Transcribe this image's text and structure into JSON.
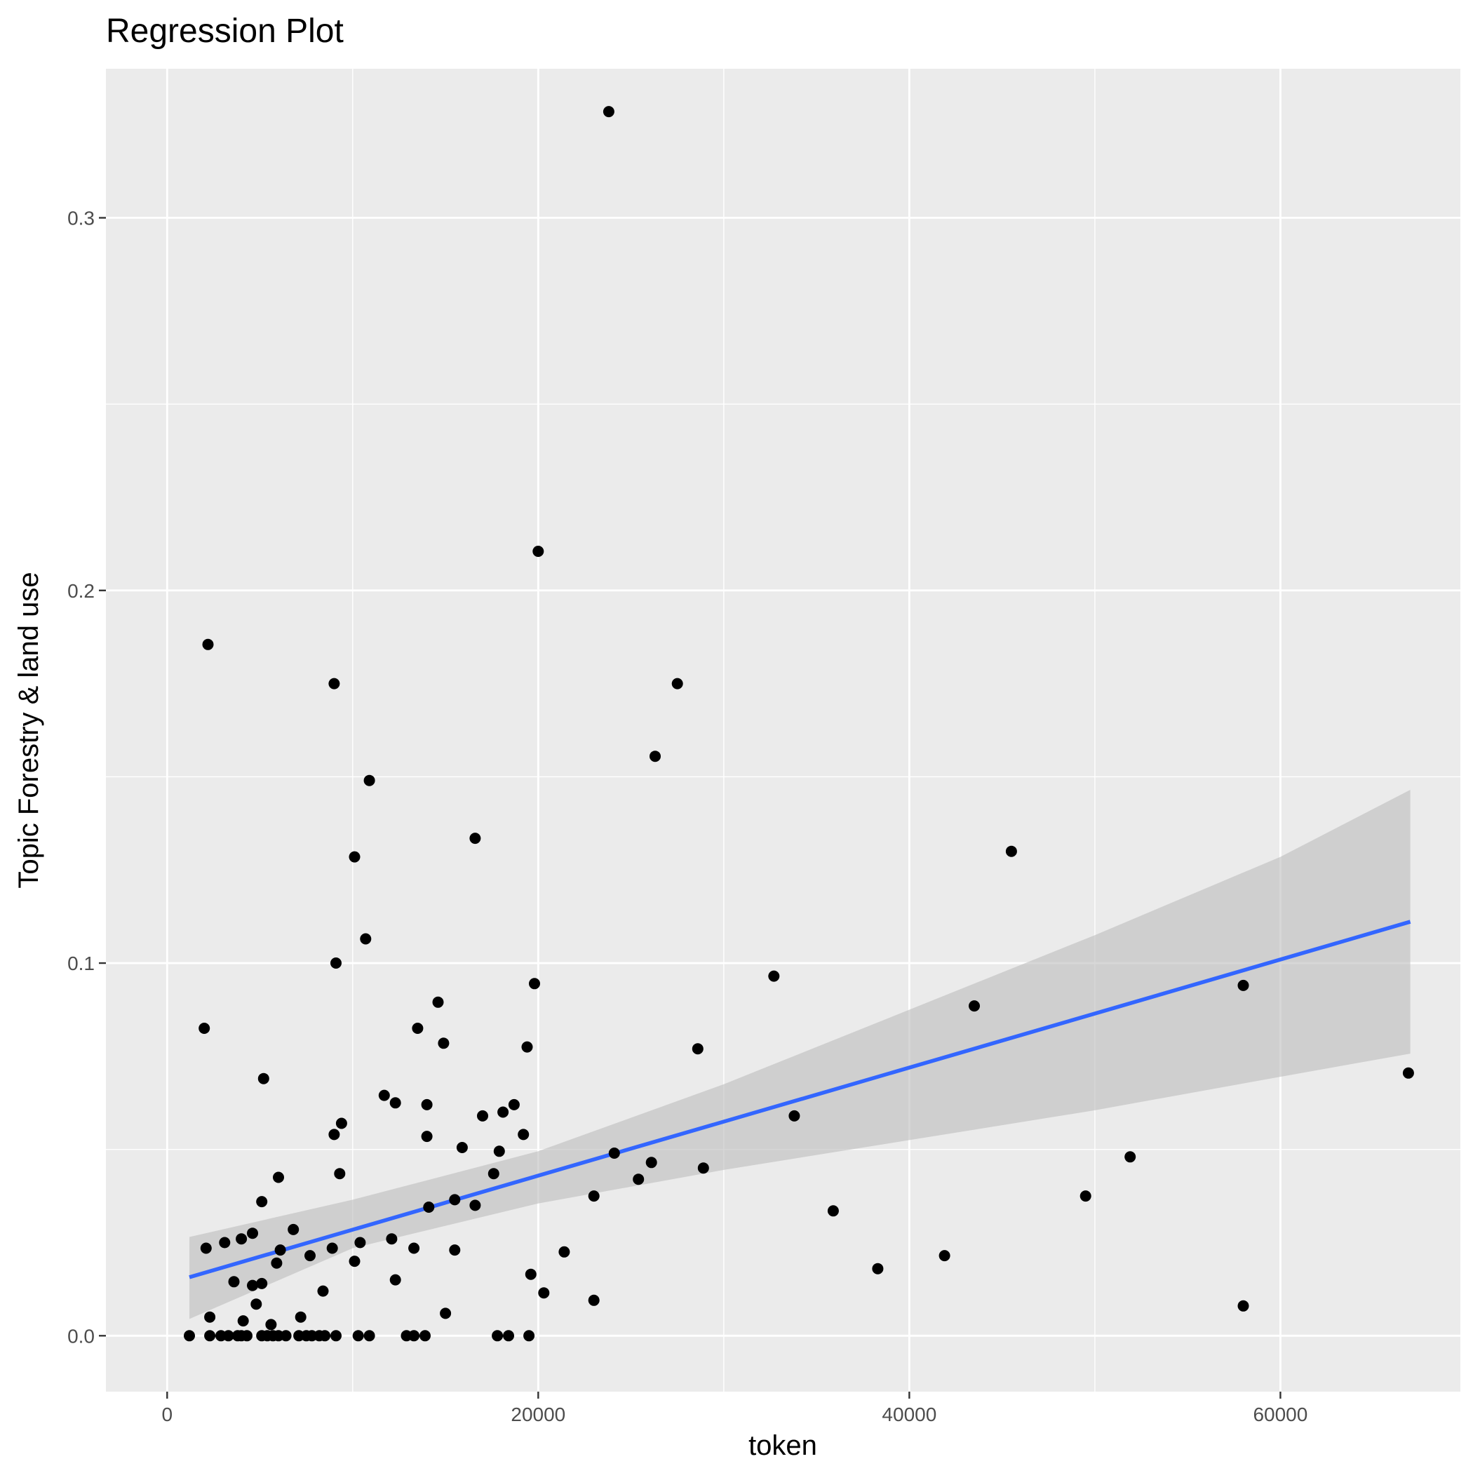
{
  "chart_data": {
    "type": "scatter",
    "title": "Regression Plot",
    "xlabel": "token",
    "ylabel": "Topic Forestry & land use",
    "xlim": [
      -3300,
      69700
    ],
    "ylim": [
      -0.015,
      0.34
    ],
    "x_ticks": [
      0,
      20000,
      40000,
      60000
    ],
    "x_tick_labels": [
      "0",
      "20000",
      "40000",
      "60000"
    ],
    "y_ticks": [
      0.0,
      0.1,
      0.2,
      0.3
    ],
    "y_tick_labels": [
      "0.0",
      "0.1",
      "0.2",
      "0.3"
    ],
    "grid": true,
    "colors": {
      "panel_background": "#ebebeb",
      "grid_line": "#ffffff",
      "points": "#000000",
      "regression_line": "#3366ff",
      "confidence_band": "#bdbdbd",
      "tick_label": "#4d4d4d",
      "tick_mark": "#333333"
    },
    "regression": {
      "x": [
        1200,
        67000
      ],
      "y": [
        0.0157,
        0.1111
      ],
      "band": {
        "x": [
          1200,
          10000,
          20000,
          30000,
          40000,
          50000,
          60000,
          67000
        ],
        "lower": [
          0.0045,
          0.0235,
          0.0355,
          0.0445,
          0.0525,
          0.0605,
          0.0695,
          0.0757
        ],
        "upper": [
          0.0265,
          0.0365,
          0.0495,
          0.0675,
          0.0875,
          0.1075,
          0.1285,
          0.1465
        ]
      }
    },
    "series": [
      {
        "x": [
          23800,
          20000,
          2200,
          9000,
          27500,
          26300,
          10900,
          16600,
          10100,
          45500,
          10700,
          9100,
          32700,
          19800,
          43500,
          58000,
          2000,
          14600,
          13500,
          14900,
          19400,
          28600,
          5200,
          66900,
          11700,
          12300,
          14000,
          17000,
          18100,
          18700,
          33800,
          9400,
          9000,
          14000,
          19200,
          15900,
          17900,
          24100,
          51900,
          26100,
          28900,
          17600,
          25400,
          9300,
          6000,
          23000,
          5100,
          15500,
          16600,
          14100,
          49500,
          35900,
          6800,
          4600,
          2100,
          4000,
          3100,
          10400,
          12100,
          6100,
          8900,
          15500,
          13300,
          21400,
          7700,
          5900,
          10100,
          3600,
          12300,
          5100,
          4600,
          38300,
          41900,
          19600,
          8400,
          20300,
          23000,
          4800,
          58000,
          15000,
          2300,
          7200,
          4100,
          5600,
          1200,
          2300,
          2900,
          3300,
          3800,
          4000,
          4300,
          5100,
          5400,
          5700,
          6000,
          6400,
          7100,
          7500,
          7800,
          8200,
          8500,
          9100,
          10300,
          10900,
          12900,
          13300,
          13900,
          17800,
          18400,
          19500
        ],
        "y": [
          0.3285,
          0.2105,
          0.1855,
          0.175,
          0.175,
          0.1555,
          0.149,
          0.1335,
          0.1285,
          0.13,
          0.1065,
          0.1,
          0.0965,
          0.0945,
          0.0885,
          0.094,
          0.0825,
          0.0895,
          0.0825,
          0.0785,
          0.0775,
          0.077,
          0.069,
          0.0705,
          0.0645,
          0.0625,
          0.062,
          0.059,
          0.06,
          0.062,
          0.059,
          0.057,
          0.054,
          0.0535,
          0.054,
          0.0505,
          0.0495,
          0.049,
          0.048,
          0.0465,
          0.045,
          0.0435,
          0.042,
          0.0435,
          0.0425,
          0.0375,
          0.036,
          0.0365,
          0.035,
          0.0345,
          0.0375,
          0.0335,
          0.0285,
          0.0275,
          0.0235,
          0.026,
          0.025,
          0.025,
          0.026,
          0.023,
          0.0235,
          0.023,
          0.0235,
          0.0225,
          0.0215,
          0.0195,
          0.02,
          0.0145,
          0.015,
          0.014,
          0.0135,
          0.018,
          0.0215,
          0.0165,
          0.012,
          0.0115,
          0.0095,
          0.0085,
          0.008,
          0.006,
          0.005,
          0.005,
          0.004,
          0.003,
          0.0,
          0.0,
          0.0,
          0.0,
          0.0,
          0.0,
          0.0,
          0.0,
          0.0,
          0.0,
          0.0,
          0.0,
          0.0,
          0.0,
          0.0,
          0.0,
          0.0,
          0.0,
          0.0,
          0.0,
          0.0,
          0.0,
          0.0,
          0.0,
          0.0,
          0.0
        ]
      }
    ]
  }
}
